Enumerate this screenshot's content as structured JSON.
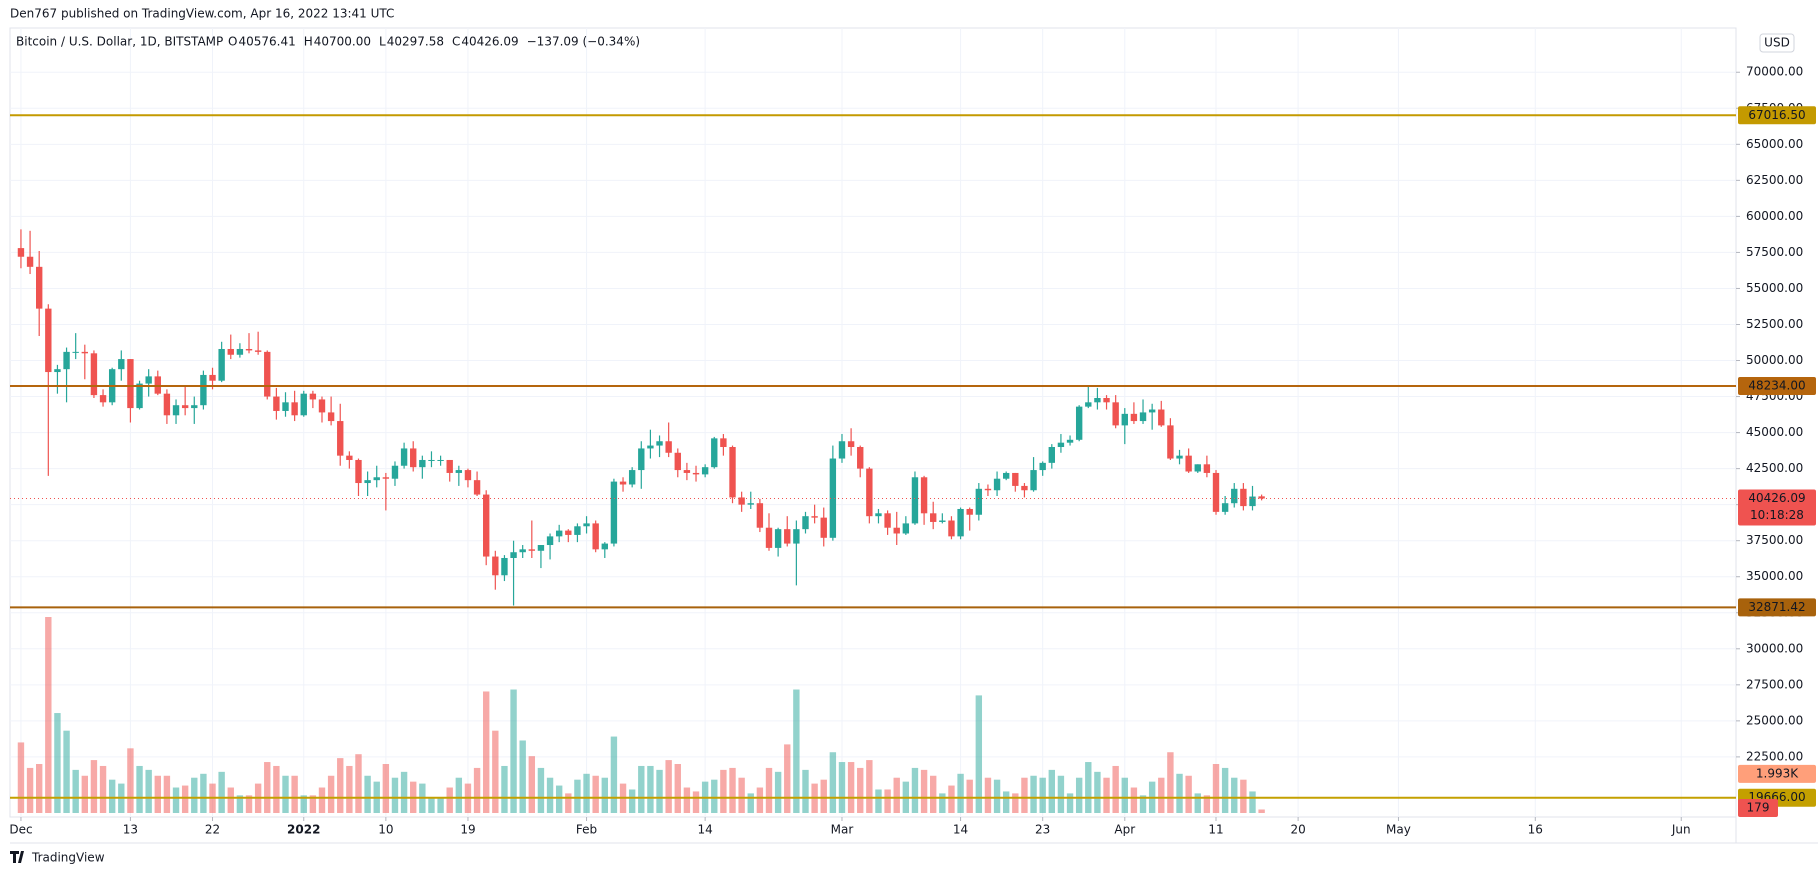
{
  "header": {
    "published": "Den767 published on TradingView.com, Apr 16, 2022 13:41 UTC",
    "footer": "TradingView"
  },
  "chart_data": {
    "type": "candlestick",
    "title": "Bitcoin / U.S. Dollar, 1D, BITSTAMP",
    "legend": [
      {
        "key": "O",
        "value": "40576.41"
      },
      {
        "key": "H",
        "value": "40700.00"
      },
      {
        "key": "L",
        "value": "40297.58"
      },
      {
        "key": "C",
        "value": "40426.09"
      }
    ],
    "change": "−137.09 (−0.34%)",
    "currency": "USD",
    "up_color": "#26a69a",
    "down_color": "#ef5350",
    "grid": true,
    "open": [
      57800,
      57200,
      56500,
      53600,
      49200,
      49400,
      50600,
      50600,
      50500,
      47600,
      47100,
      49400,
      50100,
      46700,
      48400,
      48900,
      47700,
      46200,
      46900,
      46700,
      46900,
      49000,
      48600,
      50800,
      50400,
      50800,
      50700,
      50600,
      47500,
      46500,
      47100,
      46200,
      47700,
      47300,
      46400,
      45800,
      43400,
      43100,
      41500,
      41700,
      41900,
      41800,
      42700,
      43900,
      42600,
      43100,
      43100,
      43100,
      42200,
      42400,
      41700,
      40700,
      36400,
      35100,
      36300,
      36700,
      36900,
      36800,
      37200,
      37800,
      38200,
      37900,
      38500,
      38700,
      36900,
      37300,
      41600,
      41400,
      42400,
      43900,
      44100,
      44400,
      43600,
      42400,
      42200,
      42100,
      42600,
      44600,
      44000,
      40500,
      40000,
      40100,
      38400,
      37000,
      38300,
      37300,
      38300,
      39200,
      39100,
      37700,
      43200,
      44400,
      44000,
      42500,
      39200,
      39400,
      38400,
      38000,
      38700,
      41900,
      39400,
      38800,
      38900,
      37800,
      39700,
      39300,
      41100,
      41000,
      41800,
      42200,
      41300,
      41000,
      42400,
      42900,
      44000,
      44300,
      44500,
      46800,
      47100,
      47400,
      47100,
      45500,
      46300,
      45800,
      46400,
      46600,
      45500,
      43200,
      43400,
      42300,
      42800,
      42200,
      39500,
      40100,
      41100,
      39900,
      40576.41
    ],
    "high": [
      59100,
      59000,
      57600,
      53900,
      49700,
      50900,
      51900,
      51100,
      50700,
      48000,
      49500,
      50700,
      50100,
      48600,
      49400,
      49300,
      48000,
      47300,
      48300,
      47500,
      49300,
      49500,
      51300,
      51800,
      51200,
      51900,
      52000,
      50700,
      48100,
      47800,
      47900,
      47900,
      47900,
      47500,
      47500,
      47000,
      43700,
      43200,
      42300,
      42700,
      42200,
      43000,
      44300,
      44400,
      43400,
      43700,
      43400,
      43100,
      42700,
      42500,
      42300,
      41000,
      36800,
      36500,
      37500,
      37200,
      38900,
      37200,
      38000,
      38600,
      38300,
      38700,
      39200,
      38900,
      37400,
      41800,
      41900,
      42600,
      44400,
      45200,
      44800,
      45700,
      43900,
      42900,
      42700,
      42800,
      44700,
      44900,
      44100,
      40900,
      40900,
      40400,
      39400,
      38400,
      39200,
      38900,
      39500,
      40000,
      39800,
      44100,
      44900,
      45300,
      44100,
      42600,
      39700,
      39600,
      39500,
      39200,
      42300,
      42000,
      40200,
      39400,
      39200,
      39800,
      39800,
      41500,
      41400,
      42300,
      42300,
      42200,
      41500,
      43300,
      43000,
      44200,
      44900,
      44800,
      46900,
      48200,
      48100,
      47600,
      47600,
      46700,
      47100,
      47300,
      47000,
      47200,
      46000,
      43800,
      43900,
      42800,
      43400,
      42400,
      40600,
      41500,
      41500,
      41300,
      40700
    ],
    "low": [
      56400,
      56000,
      51700,
      42000,
      47700,
      47100,
      50100,
      48700,
      47400,
      46800,
      46900,
      48600,
      45700,
      46600,
      47500,
      47600,
      45600,
      45600,
      46200,
      45600,
      46600,
      48000,
      48500,
      50100,
      50200,
      50500,
      50400,
      47300,
      45900,
      46100,
      45800,
      46100,
      46700,
      45700,
      45500,
      42700,
      42500,
      40600,
      40600,
      41200,
      39600,
      41300,
      42500,
      42300,
      41800,
      42600,
      42700,
      41600,
      41300,
      41200,
      40600,
      35800,
      34100,
      34700,
      33000,
      36300,
      36300,
      35600,
      36200,
      37400,
      37400,
      37400,
      38000,
      36700,
      36300,
      37100,
      40900,
      41200,
      41100,
      43200,
      43300,
      43300,
      41900,
      41700,
      41600,
      41900,
      42500,
      43400,
      40100,
      39500,
      39700,
      38100,
      36800,
      36400,
      37100,
      34400,
      38000,
      38700,
      37100,
      37500,
      42900,
      43400,
      41900,
      38700,
      38700,
      37900,
      37200,
      37900,
      38600,
      38600,
      38300,
      38700,
      37600,
      37600,
      38200,
      38900,
      40600,
      40600,
      41700,
      40900,
      40500,
      40900,
      42000,
      42500,
      43600,
      44100,
      44400,
      46700,
      46600,
      46600,
      45300,
      44200,
      45600,
      45600,
      45200,
      45400,
      43100,
      42800,
      42200,
      42200,
      41900,
      39300,
      39300,
      39800,
      39600,
      39600,
      40297.58
    ],
    "close": [
      57200,
      56500,
      53600,
      49200,
      49400,
      50600,
      50600,
      50500,
      47600,
      47100,
      49400,
      50100,
      46700,
      48400,
      48900,
      47700,
      46200,
      46900,
      46700,
      46900,
      49000,
      48600,
      50800,
      50400,
      50800,
      50700,
      50600,
      47500,
      46500,
      47100,
      46200,
      47700,
      47300,
      46400,
      45800,
      43400,
      43100,
      41500,
      41700,
      41900,
      41800,
      42700,
      43900,
      42600,
      43100,
      43100,
      43100,
      42200,
      42400,
      41700,
      40700,
      36400,
      35100,
      36300,
      36700,
      36900,
      36800,
      37200,
      37800,
      38200,
      37900,
      38500,
      38700,
      36900,
      37300,
      41600,
      41400,
      42400,
      43900,
      44100,
      44400,
      43600,
      42400,
      42200,
      42100,
      42600,
      44600,
      44000,
      40500,
      40000,
      40100,
      38400,
      37000,
      38300,
      37300,
      38300,
      39200,
      39100,
      37700,
      43200,
      44400,
      44000,
      42500,
      39200,
      39400,
      38400,
      38000,
      38700,
      41900,
      39400,
      38800,
      38900,
      37800,
      39700,
      39300,
      41100,
      41000,
      41800,
      42200,
      41300,
      41000,
      42400,
      42900,
      44000,
      44300,
      44500,
      46800,
      47100,
      47400,
      47100,
      45500,
      46300,
      45800,
      46400,
      46600,
      45500,
      43200,
      43400,
      42300,
      42800,
      42200,
      39500,
      40100,
      41100,
      39900,
      40563,
      40426.09
    ],
    "volume": [
      3600,
      2300,
      2500,
      10000,
      5100,
      4200,
      2200,
      1900,
      2700,
      2400,
      1700,
      1500,
      3300,
      2400,
      2200,
      1900,
      1900,
      1300,
      1400,
      1800,
      2000,
      1500,
      2100,
      1300,
      900,
      900,
      1500,
      2600,
      2400,
      1900,
      1900,
      900,
      900,
      1300,
      1900,
      2800,
      2400,
      3000,
      1900,
      1600,
      2500,
      1800,
      2100,
      1600,
      1500,
      800,
      800,
      1300,
      1800,
      1500,
      2300,
      6200,
      4200,
      2400,
      6300,
      3700,
      2900,
      2300,
      1800,
      1400,
      1000,
      1700,
      2000,
      1900,
      1800,
      3900,
      1500,
      1200,
      2400,
      2400,
      2200,
      2700,
      2500,
      1300,
      1100,
      1600,
      1700,
      2200,
      2300,
      1800,
      1000,
      1300,
      2300,
      2100,
      3500,
      6300,
      2200,
      1500,
      1700,
      3100,
      2600,
      2600,
      2300,
      2700,
      1200,
      1200,
      1800,
      1600,
      2300,
      2200,
      1900,
      1000,
      1400,
      2000,
      1700,
      6000,
      1800,
      1700,
      1100,
      1000,
      1800,
      1900,
      1800,
      2200,
      1900,
      1000,
      1800,
      2600,
      2100,
      1800,
      2400,
      1800,
      1300,
      900,
      1600,
      1800,
      3100,
      2000,
      1900,
      1000,
      900,
      2500,
      2300,
      1800,
      1700,
      1100,
      179
    ],
    "volume_ylim": [
      0,
      11500
    ],
    "volume_ma": {
      "value": 1993,
      "label": "1.993K"
    },
    "ylim": [
      18330,
      73070
    ],
    "yticks": [
      {
        "value": 22500,
        "label": "22500.00"
      },
      {
        "value": 25000,
        "label": "25000.00"
      },
      {
        "value": 27500,
        "label": "27500.00"
      },
      {
        "value": 30000,
        "label": "30000.00"
      },
      {
        "value": 32500,
        "label": "32500.00"
      },
      {
        "value": 35000,
        "label": "35000.00"
      },
      {
        "value": 37500,
        "label": "37500.00"
      },
      {
        "value": 40000,
        "label": "40000.00"
      },
      {
        "value": 42500,
        "label": "42500.00"
      },
      {
        "value": 45000,
        "label": "45000.00"
      },
      {
        "value": 47500,
        "label": "47500.00"
      },
      {
        "value": 50000,
        "label": "50000.00"
      },
      {
        "value": 52500,
        "label": "52500.00"
      },
      {
        "value": 55000,
        "label": "55000.00"
      },
      {
        "value": 57500,
        "label": "57500.00"
      },
      {
        "value": 60000,
        "label": "60000.00"
      },
      {
        "value": 62500,
        "label": "62500.00"
      },
      {
        "value": 65000,
        "label": "65000.00"
      },
      {
        "value": 67500,
        "label": "67500.00"
      },
      {
        "value": 70000,
        "label": "70000.00"
      }
    ],
    "xlim": [
      -1.2,
      188
    ],
    "xticks": [
      {
        "value": 0,
        "label": "Dec"
      },
      {
        "value": 12,
        "label": "13"
      },
      {
        "value": 21,
        "label": "22"
      },
      {
        "value": 31,
        "label": "2022"
      },
      {
        "value": 40,
        "label": "10"
      },
      {
        "value": 49,
        "label": "19"
      },
      {
        "value": 62,
        "label": "Feb"
      },
      {
        "value": 75,
        "label": "14"
      },
      {
        "value": 90,
        "label": "Mar"
      },
      {
        "value": 103,
        "label": "14"
      },
      {
        "value": 112,
        "label": "23"
      },
      {
        "value": 121,
        "label": "Apr"
      },
      {
        "value": 131,
        "label": "11"
      },
      {
        "value": 140,
        "label": "20"
      },
      {
        "value": 151,
        "label": "May"
      },
      {
        "value": 166,
        "label": "16"
      },
      {
        "value": 182,
        "label": "Jun"
      }
    ],
    "levels": [
      {
        "value": 67016.5,
        "label": "67016.50",
        "color": "#c49a00"
      },
      {
        "value": 48234,
        "label": "48234.00",
        "color": "#b5650d"
      },
      {
        "value": 32871.42,
        "label": "32871.42",
        "color": "#a8620c"
      },
      {
        "value": 19666,
        "label": "19666.00",
        "color": "#c4a000"
      }
    ],
    "last_price": {
      "value": 40426.09,
      "label": "40426.09",
      "countdown": "10:18:28",
      "color": "#ef5350"
    }
  }
}
